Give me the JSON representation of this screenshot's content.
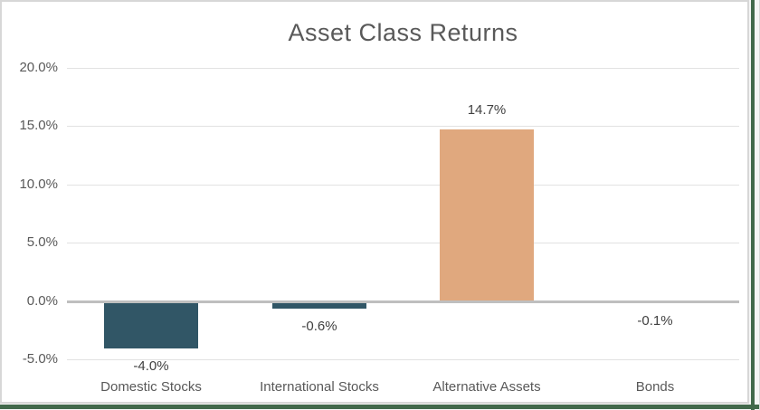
{
  "window": {
    "chart_background": "#ffffff",
    "chart_border_color": "#d7d7d7",
    "sheet_gridline_color": "#42694b"
  },
  "chart_data": {
    "type": "bar",
    "title": "Asset Class Returns",
    "categories": [
      "Domestic Stocks",
      "International Stocks",
      "Alternative Assets",
      "Bonds"
    ],
    "values": [
      -4.0,
      -0.6,
      14.7,
      -0.1
    ],
    "data_labels": [
      "-4.0%",
      "-0.6%",
      "14.7%",
      "-0.1%"
    ],
    "bar_colors": [
      "#315666",
      "#315666",
      "#e0a87e",
      "#315666"
    ],
    "xlabel": "",
    "ylabel": "",
    "ylim": [
      -5,
      20
    ],
    "yticks": [
      {
        "value": 20,
        "label": "20.0%"
      },
      {
        "value": 15,
        "label": "15.0%"
      },
      {
        "value": 10,
        "label": "10.0%"
      },
      {
        "value": 5,
        "label": "5.0%"
      },
      {
        "value": 0,
        "label": "0.0%"
      },
      {
        "value": -5,
        "label": "-5.0%"
      }
    ],
    "grid": true,
    "legend": false,
    "colors": {
      "title_text": "#595959",
      "tick_text": "#595959",
      "data_label_text": "#404040",
      "gridline": "#e2e2e2",
      "zero_axis": "#bfbfbf"
    }
  }
}
